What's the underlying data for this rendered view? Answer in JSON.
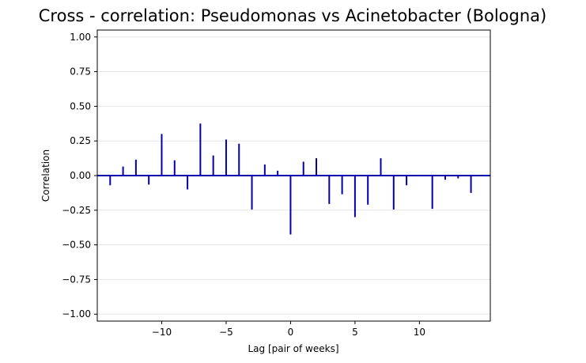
{
  "chart_data": {
    "type": "stem",
    "title": "Cross - correlation: Pseudomonas vs Acinetobacter (Bologna)",
    "xlabel": "Lag [pair of weeks]",
    "ylabel": "Correlation",
    "xlim": [
      -15,
      15.5
    ],
    "ylim": [
      -1.05,
      1.05
    ],
    "x_ticks": [
      -10,
      -5,
      0,
      5,
      10
    ],
    "x_tick_labels": [
      "−10",
      "−5",
      "0",
      "5",
      "10"
    ],
    "y_ticks": [
      -1.0,
      -0.75,
      -0.5,
      -0.25,
      0.0,
      0.25,
      0.5,
      0.75,
      1.0
    ],
    "y_tick_labels": [
      "−1.00",
      "−0.75",
      "−0.50",
      "−0.25",
      "0.00",
      "0.25",
      "0.50",
      "0.75",
      "1.00"
    ],
    "grid": "horizontal",
    "stem_color": "#0000b0",
    "baseline_color": "#0000b0",
    "grid_color": "#e5e5e5",
    "lags": [
      -14,
      -13,
      -12,
      -11,
      -10,
      -9,
      -8,
      -7,
      -6,
      -5,
      -4,
      -3,
      -2,
      -1,
      0,
      1,
      2,
      3,
      4,
      5,
      6,
      7,
      8,
      9,
      10,
      11,
      12,
      13,
      14
    ],
    "values": [
      -0.07,
      0.065,
      0.115,
      -0.065,
      0.3,
      0.11,
      -0.1,
      0.375,
      0.145,
      0.26,
      0.23,
      -0.245,
      0.08,
      0.035,
      -0.425,
      0.1,
      0.125,
      -0.205,
      -0.135,
      -0.3,
      -0.21,
      0.125,
      -0.245,
      -0.07,
      0.0,
      -0.24,
      -0.03,
      -0.02,
      -0.125
    ]
  }
}
